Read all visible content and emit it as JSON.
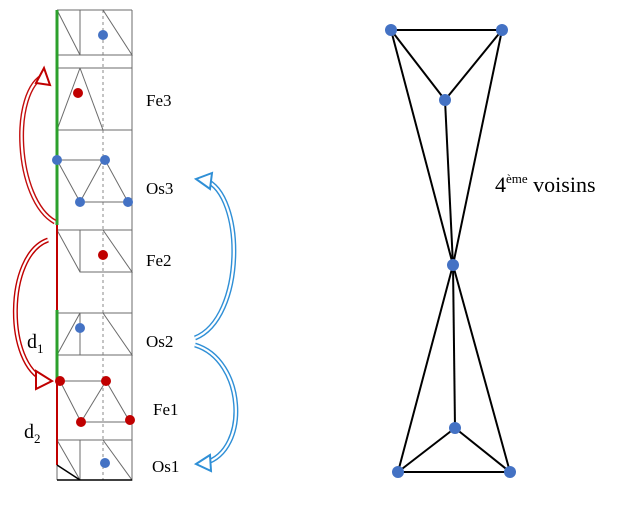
{
  "labels": {
    "fe3": "Fe3",
    "os3": "Os3",
    "fe2": "Fe2",
    "os2": "Os2",
    "fe1": "Fe1",
    "os1": "Os1",
    "d1_main": "d",
    "d1_sub": "1",
    "d2_main": "d",
    "d2_sub": "2",
    "neighbors_main": "4",
    "neighbors_sup": "ème",
    "neighbors_rest": " voisins"
  },
  "colors": {
    "fe_atom": "#c00000",
    "os_atom": "#4472c4",
    "red_arrow": "#c00000",
    "blue_arrow": "#2f8fd6",
    "green_segment": "#2ca02c",
    "red_segment": "#c00000"
  }
}
